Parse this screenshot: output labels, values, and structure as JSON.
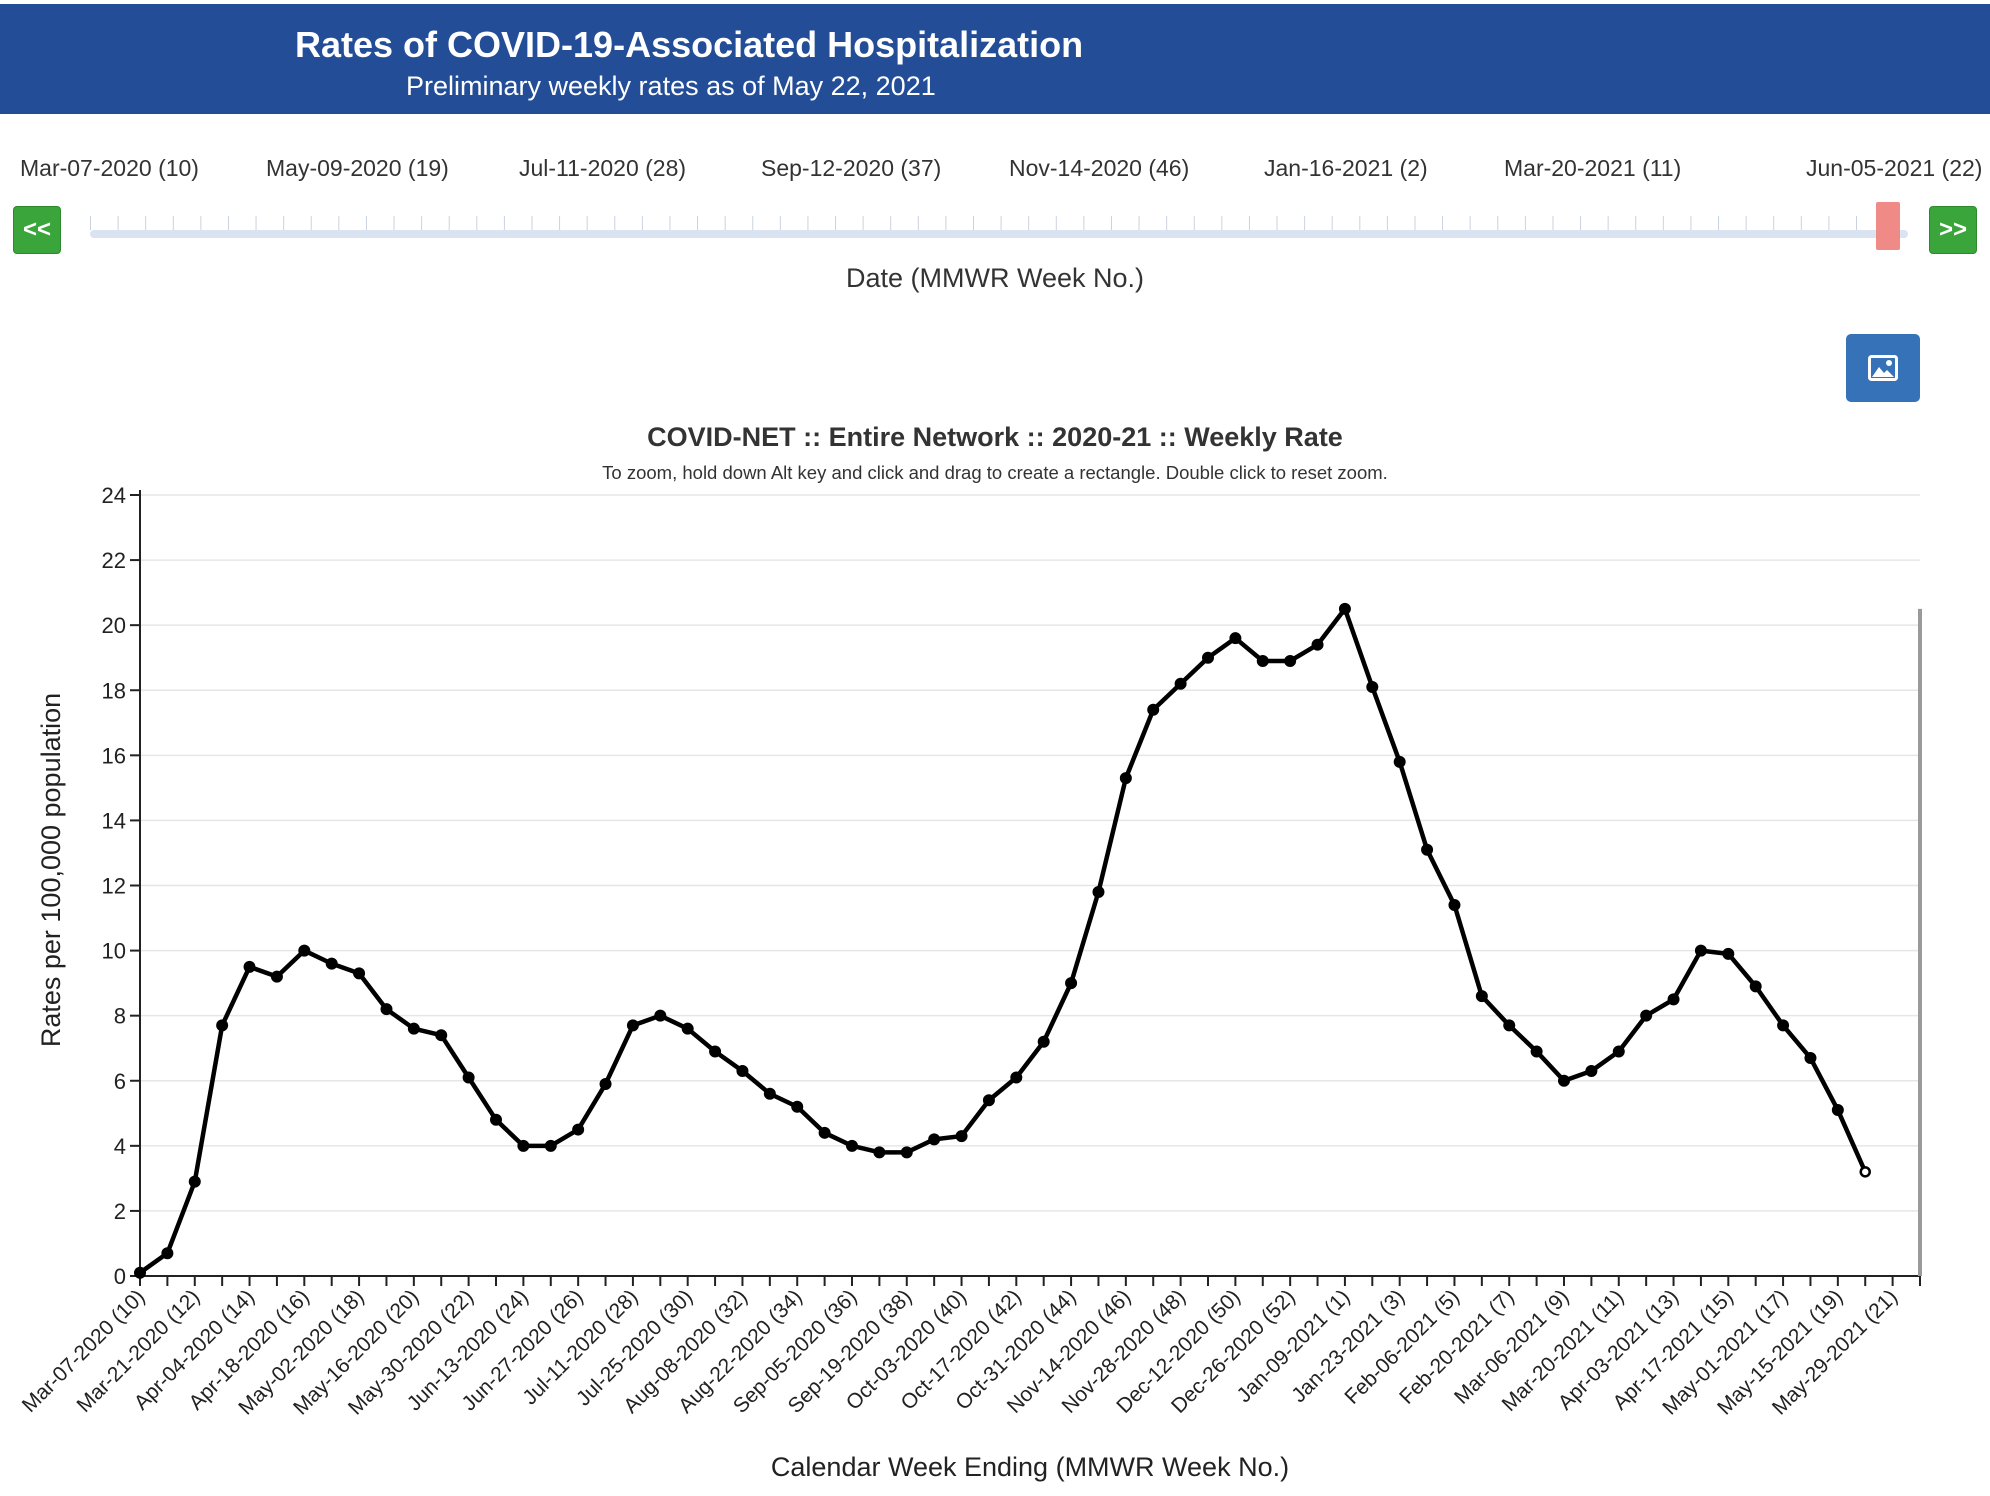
{
  "header": {
    "title": "Rates of COVID-19-Associated Hospitalization",
    "subtitle": "Preliminary weekly rates as of May 22, 2021"
  },
  "slider": {
    "labels": [
      "Mar-07-2020 (10)",
      "May-09-2020 (19)",
      "Jul-11-2020 (28)",
      "Sep-12-2020 (37)",
      "Nov-14-2020 (46)",
      "Jan-16-2021 (2)",
      "Mar-20-2021 (11)",
      "Jun-05-2021 (22)"
    ],
    "prev_label": "<<",
    "next_label": ">>",
    "axis_title": "Date (MMWR Week No.)",
    "selected": "Jun-05-2021 (22)",
    "handle_color": "#ef8a86",
    "button_color": "#3aa53a"
  },
  "colors": {
    "banner": "#234e97",
    "line": "#000000",
    "image_button": "#3572b8"
  },
  "image_button_icon": "image-icon",
  "chart_data": {
    "type": "line",
    "title": "COVID-NET :: Entire Network :: 2020-21 :: Weekly Rate",
    "subtitle": "To zoom, hold down Alt key and click and drag to create a rectangle. Double click to reset zoom.",
    "xlabel": "Calendar Week Ending (MMWR Week No.)",
    "ylabel": "Rates per 100,000 population",
    "ylim": [
      0,
      24
    ],
    "yticks": [
      0,
      2,
      4,
      6,
      8,
      10,
      12,
      14,
      16,
      18,
      20,
      22,
      24
    ],
    "grid": true,
    "x_tick_labels": [
      "Mar-07-2020 (10)",
      "Mar-21-2020 (12)",
      "Apr-04-2020 (14)",
      "Apr-18-2020 (16)",
      "May-02-2020 (18)",
      "May-16-2020 (20)",
      "May-30-2020 (22)",
      "Jun-13-2020 (24)",
      "Jun-27-2020 (26)",
      "Jul-11-2020 (28)",
      "Jul-25-2020 (30)",
      "Aug-08-2020 (32)",
      "Aug-22-2020 (34)",
      "Sep-05-2020 (36)",
      "Sep-19-2020 (38)",
      "Oct-03-2020 (40)",
      "Oct-17-2020 (42)",
      "Oct-31-2020 (44)",
      "Nov-14-2020 (46)",
      "Nov-28-2020 (48)",
      "Dec-12-2020 (50)",
      "Dec-26-2020 (52)",
      "Jan-09-2021 (1)",
      "Jan-23-2021 (3)",
      "Feb-06-2021 (5)",
      "Feb-20-2021 (7)",
      "Mar-06-2021 (9)",
      "Mar-20-2021 (11)",
      "Apr-03-2021 (13)",
      "Apr-17-2021 (15)",
      "May-01-2021 (17)",
      "May-15-2021 (19)",
      "May-29-2021 (21)"
    ],
    "x_count": 66,
    "series": [
      {
        "values": [
          0.1,
          0.7,
          2.9,
          7.7,
          9.5,
          9.2,
          10.0,
          9.6,
          9.3,
          8.2,
          7.6,
          7.4,
          6.1,
          4.8,
          4.0,
          4.0,
          4.5,
          5.9,
          7.7,
          8.0,
          7.6,
          6.9,
          6.3,
          5.6,
          5.2,
          4.4,
          4.0,
          3.8,
          3.8,
          4.2,
          4.3,
          5.4,
          6.1,
          7.2,
          9.0,
          11.8,
          15.3,
          17.4,
          18.2,
          19.0,
          19.6,
          18.9,
          18.9,
          19.4,
          20.5,
          18.1,
          15.8,
          13.1,
          11.4,
          8.6,
          7.7,
          6.9,
          6.0,
          6.3,
          6.9,
          8.0,
          8.5,
          10.0,
          9.9,
          8.9,
          7.7,
          6.7,
          5.1,
          3.2
        ]
      }
    ]
  }
}
